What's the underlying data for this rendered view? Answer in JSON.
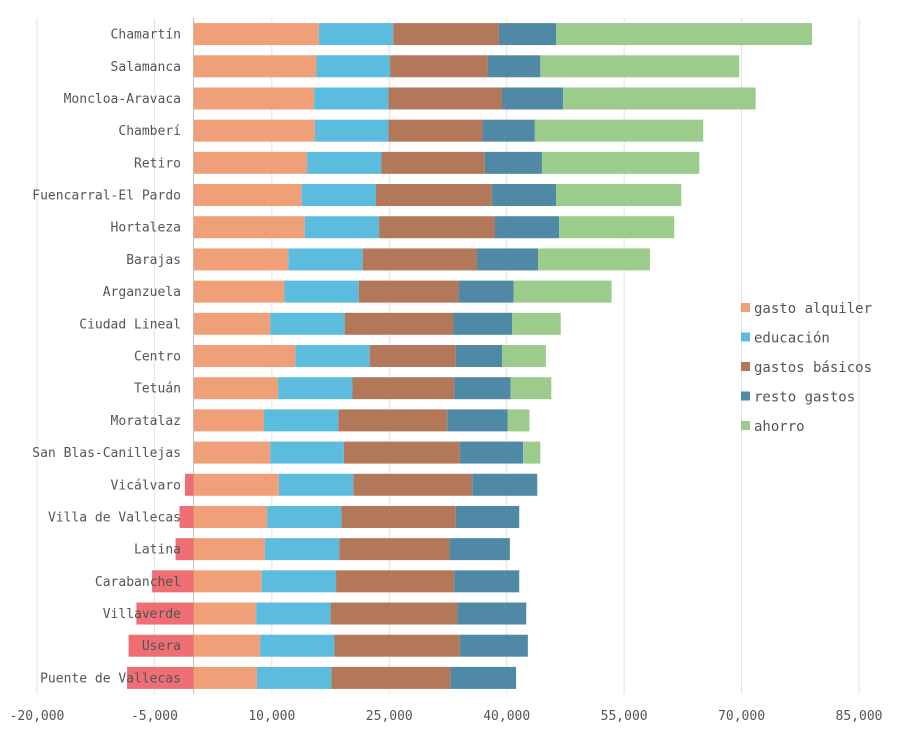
{
  "chart_data": {
    "type": "bar",
    "orientation": "horizontal",
    "stacked": true,
    "title": "",
    "xlabel": "",
    "ylabel": "",
    "xlim": [
      -20000,
      85000
    ],
    "x_ticks": [
      -20000,
      -5000,
      10000,
      25000,
      40000,
      55000,
      70000,
      85000
    ],
    "x_tick_labels": [
      "-20,000",
      "-5,000",
      "10,000",
      "25,000",
      "40,000",
      "55,000",
      "70,000",
      "85,000"
    ],
    "grid": true,
    "legend_position": "right",
    "categories": [
      "Chamartín",
      "Salamanca",
      "Moncloa-Aravaca",
      "Chamberí",
      "Retiro",
      "Fuencarral-El Pardo",
      "Hortaleza",
      "Barajas",
      "Arganzuela",
      "Ciudad Lineal",
      "Centro",
      "Tetuán",
      "Moratalaz",
      "San Blas-Canillejas",
      "Vicálvaro",
      "Villa de Vallecas",
      "Latina",
      "Carabanchel",
      "Villaverde",
      "Usera",
      "Puente de Vallecas"
    ],
    "series": [
      {
        "name": "gasto alquiler",
        "color": "#f0a078",
        "values": [
          16000,
          15700,
          15400,
          15500,
          14500,
          13800,
          14200,
          12100,
          11600,
          9800,
          13000,
          10800,
          9000,
          9800,
          10900,
          9400,
          9100,
          8700,
          8000,
          8500,
          8100
        ]
      },
      {
        "name": "educación",
        "color": "#5bbcde",
        "values": [
          9500,
          9400,
          9500,
          9400,
          9500,
          9500,
          9500,
          9500,
          9500,
          9500,
          9500,
          9500,
          9500,
          9400,
          9500,
          9500,
          9500,
          9500,
          9500,
          9500,
          9500
        ]
      },
      {
        "name": "gastos básicos",
        "color": "#b3785a",
        "values": [
          13500,
          12500,
          14500,
          12000,
          13200,
          14800,
          14800,
          14600,
          12800,
          13900,
          11000,
          13000,
          13900,
          14800,
          15200,
          14600,
          14100,
          15100,
          16200,
          16000,
          15200
        ]
      },
      {
        "name": "resto gastos",
        "color": "#4f89a5",
        "values": [
          7300,
          6700,
          7800,
          6700,
          7300,
          8200,
          8200,
          7800,
          7000,
          7500,
          5900,
          7200,
          7700,
          8100,
          8300,
          8100,
          7700,
          8300,
          8800,
          8700,
          8400
        ]
      },
      {
        "name": "ahorro",
        "color": "#9ccc8c",
        "values": [
          32700,
          25400,
          24600,
          21500,
          20100,
          16000,
          14700,
          14300,
          12500,
          6200,
          5600,
          5200,
          2800,
          2200,
          -1100,
          -1800,
          -2300,
          -5300,
          -7300,
          -8300,
          -8500
        ]
      }
    ],
    "negative_color": "#ee6e74"
  }
}
